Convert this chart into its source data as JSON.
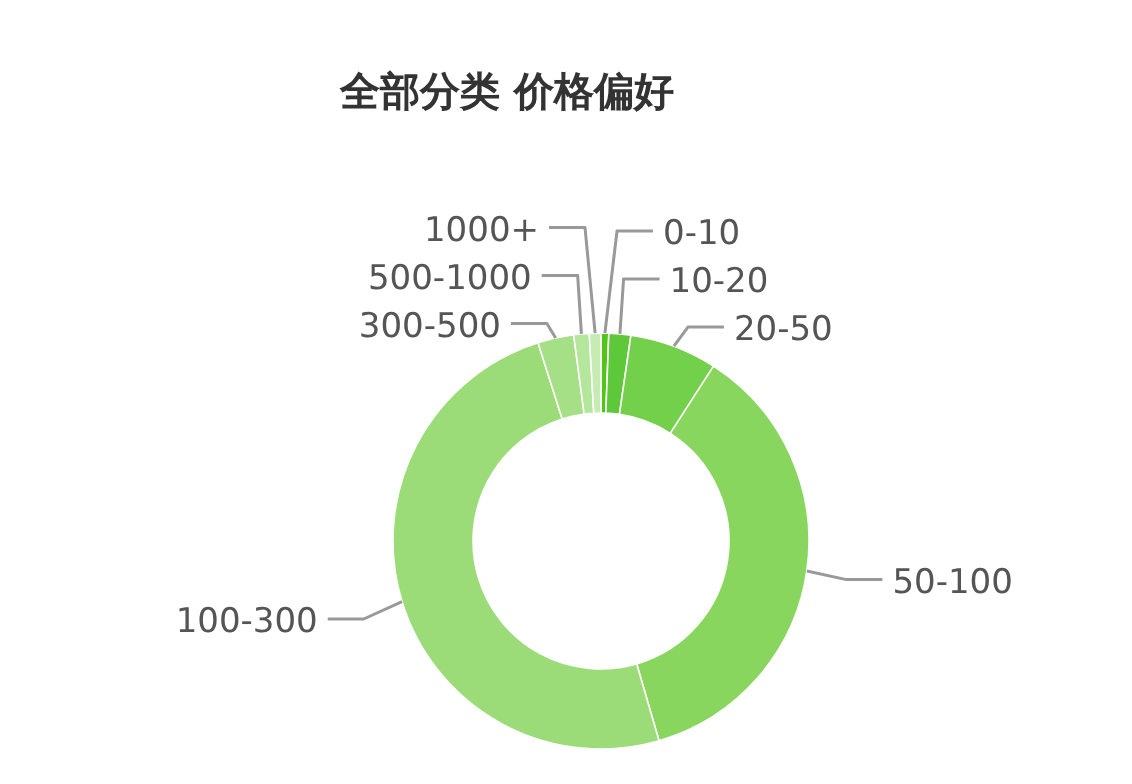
{
  "chart_data": {
    "type": "donut",
    "title": "全部分类 价格偏好",
    "categories": [
      "0-10",
      "10-20",
      "20-50",
      "50-100",
      "100-300",
      "300-500",
      "500-1000",
      "1000+"
    ],
    "values": [
      0.6,
      1.7,
      6.8,
      36.4,
      49.6,
      2.8,
      1.2,
      0.9
    ],
    "colors": [
      "#52c41a",
      "#5cc83a",
      "#73d04a",
      "#88d65e",
      "#9bdc78",
      "#a5e087",
      "#b4e69c",
      "#c6ecb4"
    ]
  }
}
